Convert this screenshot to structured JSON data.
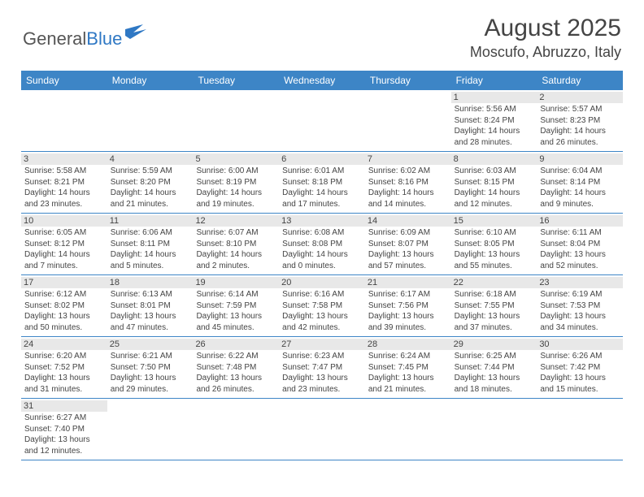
{
  "logo": {
    "text1": "General",
    "text2": "Blue"
  },
  "title": "August 2025",
  "location": "Moscufo, Abruzzo, Italy",
  "colors": {
    "header_bg": "#3d85c6",
    "header_text": "#ffffff",
    "daynum_bg": "#e8e8e8",
    "text": "#444444",
    "row_border": "#3d85c6"
  },
  "weekdays": [
    "Sunday",
    "Monday",
    "Tuesday",
    "Wednesday",
    "Thursday",
    "Friday",
    "Saturday"
  ],
  "weeks": [
    [
      {
        "day": "",
        "sunrise": "",
        "sunset": "",
        "daylight1": "",
        "daylight2": ""
      },
      {
        "day": "",
        "sunrise": "",
        "sunset": "",
        "daylight1": "",
        "daylight2": ""
      },
      {
        "day": "",
        "sunrise": "",
        "sunset": "",
        "daylight1": "",
        "daylight2": ""
      },
      {
        "day": "",
        "sunrise": "",
        "sunset": "",
        "daylight1": "",
        "daylight2": ""
      },
      {
        "day": "",
        "sunrise": "",
        "sunset": "",
        "daylight1": "",
        "daylight2": ""
      },
      {
        "day": "1",
        "sunrise": "Sunrise: 5:56 AM",
        "sunset": "Sunset: 8:24 PM",
        "daylight1": "Daylight: 14 hours",
        "daylight2": "and 28 minutes."
      },
      {
        "day": "2",
        "sunrise": "Sunrise: 5:57 AM",
        "sunset": "Sunset: 8:23 PM",
        "daylight1": "Daylight: 14 hours",
        "daylight2": "and 26 minutes."
      }
    ],
    [
      {
        "day": "3",
        "sunrise": "Sunrise: 5:58 AM",
        "sunset": "Sunset: 8:21 PM",
        "daylight1": "Daylight: 14 hours",
        "daylight2": "and 23 minutes."
      },
      {
        "day": "4",
        "sunrise": "Sunrise: 5:59 AM",
        "sunset": "Sunset: 8:20 PM",
        "daylight1": "Daylight: 14 hours",
        "daylight2": "and 21 minutes."
      },
      {
        "day": "5",
        "sunrise": "Sunrise: 6:00 AM",
        "sunset": "Sunset: 8:19 PM",
        "daylight1": "Daylight: 14 hours",
        "daylight2": "and 19 minutes."
      },
      {
        "day": "6",
        "sunrise": "Sunrise: 6:01 AM",
        "sunset": "Sunset: 8:18 PM",
        "daylight1": "Daylight: 14 hours",
        "daylight2": "and 17 minutes."
      },
      {
        "day": "7",
        "sunrise": "Sunrise: 6:02 AM",
        "sunset": "Sunset: 8:16 PM",
        "daylight1": "Daylight: 14 hours",
        "daylight2": "and 14 minutes."
      },
      {
        "day": "8",
        "sunrise": "Sunrise: 6:03 AM",
        "sunset": "Sunset: 8:15 PM",
        "daylight1": "Daylight: 14 hours",
        "daylight2": "and 12 minutes."
      },
      {
        "day": "9",
        "sunrise": "Sunrise: 6:04 AM",
        "sunset": "Sunset: 8:14 PM",
        "daylight1": "Daylight: 14 hours",
        "daylight2": "and 9 minutes."
      }
    ],
    [
      {
        "day": "10",
        "sunrise": "Sunrise: 6:05 AM",
        "sunset": "Sunset: 8:12 PM",
        "daylight1": "Daylight: 14 hours",
        "daylight2": "and 7 minutes."
      },
      {
        "day": "11",
        "sunrise": "Sunrise: 6:06 AM",
        "sunset": "Sunset: 8:11 PM",
        "daylight1": "Daylight: 14 hours",
        "daylight2": "and 5 minutes."
      },
      {
        "day": "12",
        "sunrise": "Sunrise: 6:07 AM",
        "sunset": "Sunset: 8:10 PM",
        "daylight1": "Daylight: 14 hours",
        "daylight2": "and 2 minutes."
      },
      {
        "day": "13",
        "sunrise": "Sunrise: 6:08 AM",
        "sunset": "Sunset: 8:08 PM",
        "daylight1": "Daylight: 14 hours",
        "daylight2": "and 0 minutes."
      },
      {
        "day": "14",
        "sunrise": "Sunrise: 6:09 AM",
        "sunset": "Sunset: 8:07 PM",
        "daylight1": "Daylight: 13 hours",
        "daylight2": "and 57 minutes."
      },
      {
        "day": "15",
        "sunrise": "Sunrise: 6:10 AM",
        "sunset": "Sunset: 8:05 PM",
        "daylight1": "Daylight: 13 hours",
        "daylight2": "and 55 minutes."
      },
      {
        "day": "16",
        "sunrise": "Sunrise: 6:11 AM",
        "sunset": "Sunset: 8:04 PM",
        "daylight1": "Daylight: 13 hours",
        "daylight2": "and 52 minutes."
      }
    ],
    [
      {
        "day": "17",
        "sunrise": "Sunrise: 6:12 AM",
        "sunset": "Sunset: 8:02 PM",
        "daylight1": "Daylight: 13 hours",
        "daylight2": "and 50 minutes."
      },
      {
        "day": "18",
        "sunrise": "Sunrise: 6:13 AM",
        "sunset": "Sunset: 8:01 PM",
        "daylight1": "Daylight: 13 hours",
        "daylight2": "and 47 minutes."
      },
      {
        "day": "19",
        "sunrise": "Sunrise: 6:14 AM",
        "sunset": "Sunset: 7:59 PM",
        "daylight1": "Daylight: 13 hours",
        "daylight2": "and 45 minutes."
      },
      {
        "day": "20",
        "sunrise": "Sunrise: 6:16 AM",
        "sunset": "Sunset: 7:58 PM",
        "daylight1": "Daylight: 13 hours",
        "daylight2": "and 42 minutes."
      },
      {
        "day": "21",
        "sunrise": "Sunrise: 6:17 AM",
        "sunset": "Sunset: 7:56 PM",
        "daylight1": "Daylight: 13 hours",
        "daylight2": "and 39 minutes."
      },
      {
        "day": "22",
        "sunrise": "Sunrise: 6:18 AM",
        "sunset": "Sunset: 7:55 PM",
        "daylight1": "Daylight: 13 hours",
        "daylight2": "and 37 minutes."
      },
      {
        "day": "23",
        "sunrise": "Sunrise: 6:19 AM",
        "sunset": "Sunset: 7:53 PM",
        "daylight1": "Daylight: 13 hours",
        "daylight2": "and 34 minutes."
      }
    ],
    [
      {
        "day": "24",
        "sunrise": "Sunrise: 6:20 AM",
        "sunset": "Sunset: 7:52 PM",
        "daylight1": "Daylight: 13 hours",
        "daylight2": "and 31 minutes."
      },
      {
        "day": "25",
        "sunrise": "Sunrise: 6:21 AM",
        "sunset": "Sunset: 7:50 PM",
        "daylight1": "Daylight: 13 hours",
        "daylight2": "and 29 minutes."
      },
      {
        "day": "26",
        "sunrise": "Sunrise: 6:22 AM",
        "sunset": "Sunset: 7:48 PM",
        "daylight1": "Daylight: 13 hours",
        "daylight2": "and 26 minutes."
      },
      {
        "day": "27",
        "sunrise": "Sunrise: 6:23 AM",
        "sunset": "Sunset: 7:47 PM",
        "daylight1": "Daylight: 13 hours",
        "daylight2": "and 23 minutes."
      },
      {
        "day": "28",
        "sunrise": "Sunrise: 6:24 AM",
        "sunset": "Sunset: 7:45 PM",
        "daylight1": "Daylight: 13 hours",
        "daylight2": "and 21 minutes."
      },
      {
        "day": "29",
        "sunrise": "Sunrise: 6:25 AM",
        "sunset": "Sunset: 7:44 PM",
        "daylight1": "Daylight: 13 hours",
        "daylight2": "and 18 minutes."
      },
      {
        "day": "30",
        "sunrise": "Sunrise: 6:26 AM",
        "sunset": "Sunset: 7:42 PM",
        "daylight1": "Daylight: 13 hours",
        "daylight2": "and 15 minutes."
      }
    ],
    [
      {
        "day": "31",
        "sunrise": "Sunrise: 6:27 AM",
        "sunset": "Sunset: 7:40 PM",
        "daylight1": "Daylight: 13 hours",
        "daylight2": "and 12 minutes."
      },
      {
        "day": "",
        "sunrise": "",
        "sunset": "",
        "daylight1": "",
        "daylight2": ""
      },
      {
        "day": "",
        "sunrise": "",
        "sunset": "",
        "daylight1": "",
        "daylight2": ""
      },
      {
        "day": "",
        "sunrise": "",
        "sunset": "",
        "daylight1": "",
        "daylight2": ""
      },
      {
        "day": "",
        "sunrise": "",
        "sunset": "",
        "daylight1": "",
        "daylight2": ""
      },
      {
        "day": "",
        "sunrise": "",
        "sunset": "",
        "daylight1": "",
        "daylight2": ""
      },
      {
        "day": "",
        "sunrise": "",
        "sunset": "",
        "daylight1": "",
        "daylight2": ""
      }
    ]
  ]
}
